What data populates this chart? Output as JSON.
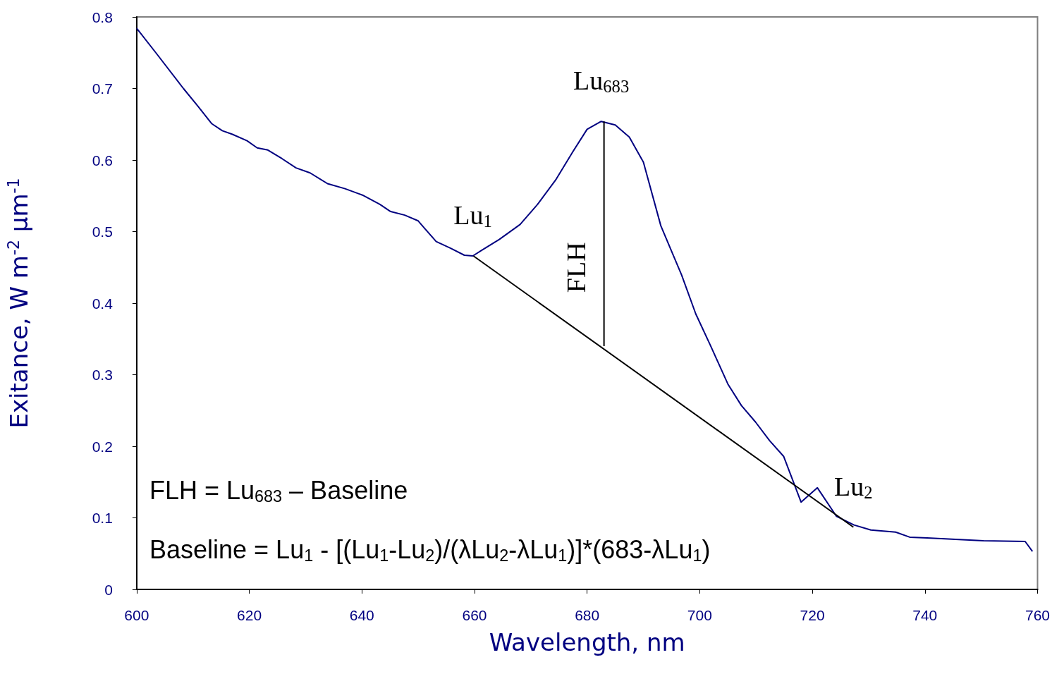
{
  "chart_data": {
    "type": "line",
    "xlabel": "Wavelength, nm",
    "ylabel": "Exitance, W m$^{-2}$ μm$^{-1}$",
    "xlim": [
      600,
      760
    ],
    "xticks": [
      600,
      620,
      640,
      660,
      680,
      700,
      720,
      740,
      760
    ],
    "ylim": [
      0,
      0.8
    ],
    "yticks": [
      0,
      0.1,
      0.2,
      0.3,
      0.4,
      0.5,
      0.6,
      0.7,
      0.8
    ],
    "grid": false,
    "marker": "none",
    "line_style": "solid",
    "series": [
      {
        "color": "#000080",
        "x": [
          600,
          603.4,
          608.3,
          610.8,
          613.3,
          615.2,
          617,
          619.6,
          621.4,
          623.3,
          625.8,
          628.3,
          630.8,
          633.9,
          637,
          640.1,
          643.2,
          645.1,
          647.6,
          650,
          651.3,
          653.2,
          655.7,
          658.2,
          659.7,
          661.3,
          664.4,
          668.1,
          671.2,
          674.4,
          677.5,
          680,
          682.5,
          685,
          687.5,
          690,
          693.1,
          696.8,
          699.3,
          701.9,
          705,
          707.4,
          709.9,
          712.4,
          714.9,
          718,
          720.9,
          724.3,
          727.4,
          730.4,
          734.8,
          737.3,
          740.4,
          745.4,
          750.4,
          757.8,
          759.1
        ],
        "values": [
          0.784,
          0.75,
          0.7,
          0.676,
          0.651,
          0.641,
          0.636,
          0.627,
          0.617,
          0.614,
          0.602,
          0.589,
          0.582,
          0.567,
          0.56,
          0.551,
          0.538,
          0.528,
          0.523,
          0.515,
          0.503,
          0.486,
          0.477,
          0.467,
          0.466,
          0.474,
          0.489,
          0.51,
          0.538,
          0.572,
          0.612,
          0.643,
          0.654,
          0.649,
          0.632,
          0.597,
          0.508,
          0.439,
          0.385,
          0.341,
          0.287,
          0.257,
          0.234,
          0.208,
          0.186,
          0.122,
          0.142,
          0.102,
          0.09,
          0.083,
          0.08,
          0.073,
          0.072,
          0.07,
          0.068,
          0.067,
          0.053
        ]
      },
      {
        "color": "#000000",
        "x": [
          659.8,
          727.3
        ],
        "values": [
          0.466,
          0.087
        ]
      },
      {
        "color": "#000000",
        "x": [
          683,
          683
        ],
        "values": [
          0.654,
          0.34
        ]
      }
    ],
    "annotations": [
      {
        "text": "Lu$_{1}$",
        "x": 659.7,
        "y": 0.466
      },
      {
        "text": "Lu$_{683}$",
        "x": 682.5,
        "y": 0.654
      },
      {
        "text": "Lu$_{2}$",
        "x": 727.3,
        "y": 0.087
      },
      {
        "text": "FLH",
        "x": 683,
        "y": 0.45
      },
      "FLH = Lu$_{683}$ – Baseline",
      "Baseline = Lu$_{1}$ - [(Lu$_{1}$-Lu$_{2}$)/(λLu$_{2}$-λLu$_{1}$)]*(683-λLu$_{1}$)"
    ]
  }
}
